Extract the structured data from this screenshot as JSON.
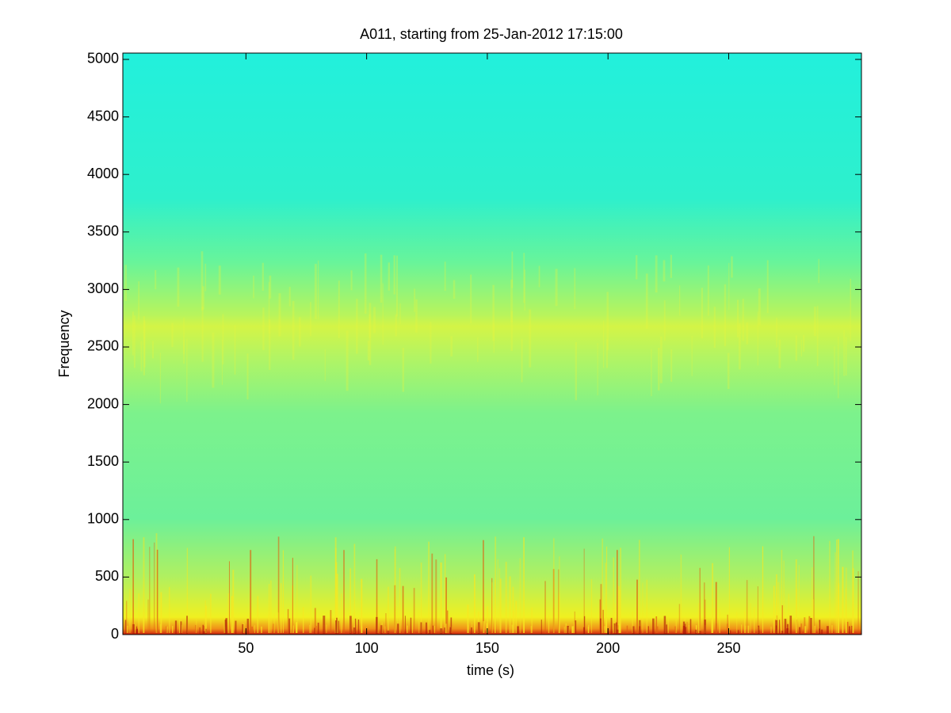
{
  "chart_data": {
    "type": "spectrogram",
    "title": "A011, starting from 25-Jan-2012 17:15:00",
    "x_label": "time (s)",
    "y_label": "Frequency",
    "xlim": [
      -1,
      305
    ],
    "xticks": [
      50,
      100,
      150,
      200,
      250
    ],
    "ylim": [
      0,
      5055
    ],
    "yticks": [
      0,
      500,
      1000,
      1500,
      2000,
      2500,
      3000,
      3500,
      4000,
      4500,
      5000
    ]
  }
}
